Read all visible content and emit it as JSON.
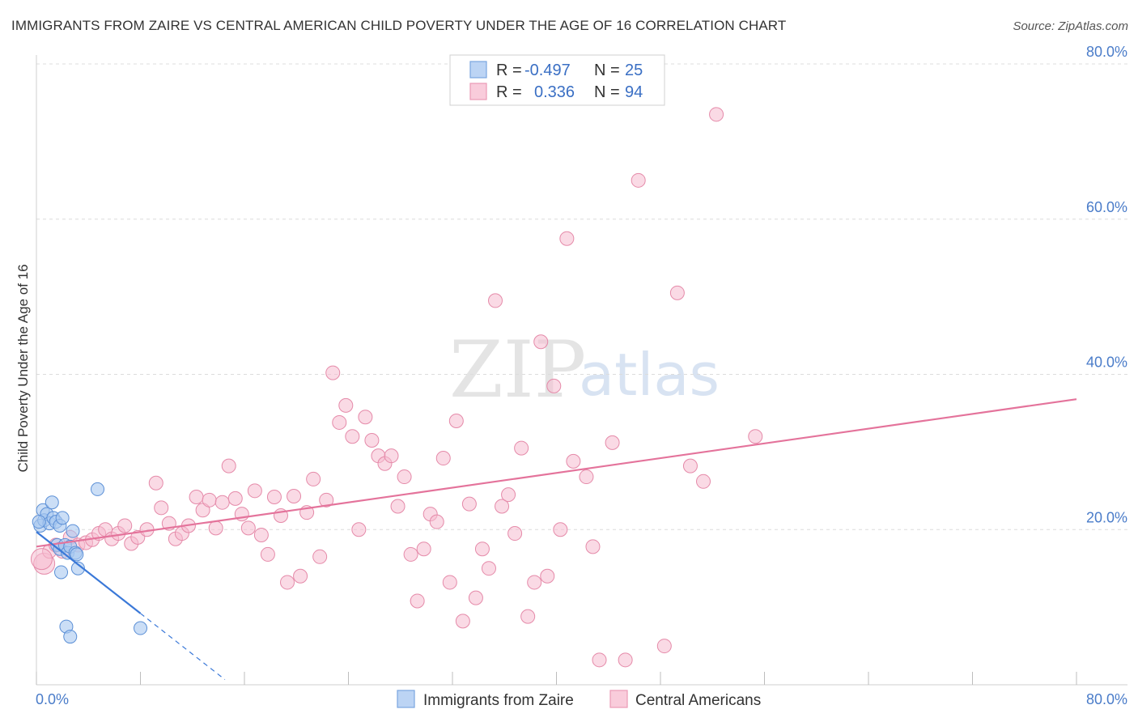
{
  "title": "IMMIGRANTS FROM ZAIRE VS CENTRAL AMERICAN CHILD POVERTY UNDER THE AGE OF 16 CORRELATION CHART",
  "source": "Source: ZipAtlas.com",
  "watermark": {
    "zip": "ZIP",
    "atlas": "atlas"
  },
  "legend": {
    "row1": {
      "r_label": "R =",
      "r_value": "-0.497",
      "n_label": "N =",
      "n_value": "25"
    },
    "row2": {
      "r_label": "R =",
      "r_value": "0.336",
      "n_label": "N =",
      "n_value": "94"
    }
  },
  "bottom_legend": {
    "series1": "Immigrants from Zaire",
    "series2": "Central Americans"
  },
  "colors": {
    "zaire_fill": "#a8c8f0",
    "zaire_stroke": "#5b8fd6",
    "zaire_line": "#3a78d8",
    "central_fill": "#f6bcd0",
    "central_stroke": "#e58aa9",
    "central_line": "#e4739b",
    "tick_text": "#4a7cc9"
  },
  "chart_data": {
    "type": "scatter",
    "ylabel": "Child Poverty Under the Age of 16",
    "xlim": [
      0,
      80
    ],
    "ylim": [
      0,
      80
    ],
    "x_tick_labels": [
      "0.0%",
      "80.0%"
    ],
    "y_ticks": [
      20,
      40,
      60,
      80
    ],
    "y_tick_labels": [
      "20.0%",
      "40.0%",
      "60.0%",
      "80.0%"
    ],
    "grid": true,
    "series": [
      {
        "name": "Immigrants from Zaire",
        "points": [
          [
            0.3,
            20.5
          ],
          [
            0.5,
            22.5
          ],
          [
            0.6,
            21.2
          ],
          [
            0.8,
            22.0
          ],
          [
            1.0,
            20.8
          ],
          [
            1.2,
            23.5
          ],
          [
            1.3,
            21.5
          ],
          [
            1.5,
            21.0
          ],
          [
            1.6,
            18.0
          ],
          [
            1.8,
            20.5
          ],
          [
            2.0,
            21.5
          ],
          [
            1.8,
            17.5
          ],
          [
            2.2,
            18.0
          ],
          [
            2.4,
            17.0
          ],
          [
            2.6,
            17.8
          ],
          [
            2.8,
            19.8
          ],
          [
            3.0,
            17.0
          ],
          [
            3.1,
            16.8
          ],
          [
            3.2,
            15.0
          ],
          [
            1.9,
            14.5
          ],
          [
            2.3,
            7.5
          ],
          [
            2.6,
            6.2
          ],
          [
            4.7,
            25.2
          ],
          [
            8.0,
            7.3
          ],
          [
            0.2,
            21.0
          ]
        ],
        "trend": {
          "x1": 0,
          "y1": 19.7,
          "x2": 8.0,
          "y2": 9.2,
          "dash_to_x": 14.5
        }
      },
      {
        "name": "Central Americans",
        "points": [
          [
            0.6,
            15.6
          ],
          [
            1.0,
            17.2
          ],
          [
            1.5,
            18.0
          ],
          [
            2.0,
            17.2
          ],
          [
            2.6,
            19.0
          ],
          [
            3.2,
            18.0
          ],
          [
            3.8,
            18.3
          ],
          [
            4.3,
            18.7
          ],
          [
            4.8,
            19.5
          ],
          [
            5.3,
            20.0
          ],
          [
            5.8,
            18.8
          ],
          [
            6.3,
            19.5
          ],
          [
            6.8,
            20.5
          ],
          [
            7.3,
            18.2
          ],
          [
            7.8,
            19.0
          ],
          [
            8.5,
            20.0
          ],
          [
            9.2,
            26.0
          ],
          [
            9.6,
            22.8
          ],
          [
            10.2,
            20.8
          ],
          [
            10.7,
            18.8
          ],
          [
            11.2,
            19.5
          ],
          [
            11.7,
            20.5
          ],
          [
            12.3,
            24.2
          ],
          [
            12.8,
            22.5
          ],
          [
            13.3,
            23.8
          ],
          [
            13.8,
            20.2
          ],
          [
            14.3,
            23.5
          ],
          [
            14.8,
            28.2
          ],
          [
            15.3,
            24.0
          ],
          [
            15.8,
            22.0
          ],
          [
            16.3,
            20.2
          ],
          [
            16.8,
            25.0
          ],
          [
            17.3,
            19.3
          ],
          [
            17.8,
            16.8
          ],
          [
            18.3,
            24.2
          ],
          [
            18.8,
            21.8
          ],
          [
            19.3,
            13.2
          ],
          [
            19.8,
            24.3
          ],
          [
            20.3,
            14.0
          ],
          [
            20.8,
            22.2
          ],
          [
            21.3,
            26.5
          ],
          [
            21.8,
            16.5
          ],
          [
            22.3,
            23.8
          ],
          [
            22.8,
            40.2
          ],
          [
            23.3,
            33.8
          ],
          [
            23.8,
            36.0
          ],
          [
            24.3,
            32.0
          ],
          [
            24.8,
            20.0
          ],
          [
            25.3,
            34.5
          ],
          [
            25.8,
            31.5
          ],
          [
            26.3,
            29.5
          ],
          [
            26.8,
            28.5
          ],
          [
            27.3,
            29.5
          ],
          [
            27.8,
            23.0
          ],
          [
            28.3,
            26.8
          ],
          [
            28.8,
            16.8
          ],
          [
            29.3,
            10.8
          ],
          [
            29.8,
            17.5
          ],
          [
            30.3,
            22.0
          ],
          [
            30.8,
            21.0
          ],
          [
            31.3,
            29.2
          ],
          [
            31.8,
            13.2
          ],
          [
            32.3,
            34.0
          ],
          [
            32.8,
            8.2
          ],
          [
            33.3,
            23.3
          ],
          [
            33.8,
            11.2
          ],
          [
            34.3,
            17.5
          ],
          [
            34.8,
            15.0
          ],
          [
            35.3,
            49.5
          ],
          [
            35.8,
            23.0
          ],
          [
            36.3,
            24.5
          ],
          [
            36.8,
            19.5
          ],
          [
            37.3,
            30.5
          ],
          [
            37.8,
            8.8
          ],
          [
            38.3,
            13.2
          ],
          [
            38.8,
            44.2
          ],
          [
            39.3,
            14.0
          ],
          [
            39.8,
            38.5
          ],
          [
            40.3,
            20.0
          ],
          [
            40.8,
            57.5
          ],
          [
            41.3,
            28.8
          ],
          [
            42.3,
            26.8
          ],
          [
            42.8,
            17.8
          ],
          [
            43.3,
            3.2
          ],
          [
            44.3,
            31.2
          ],
          [
            45.3,
            3.2
          ],
          [
            46.3,
            65.0
          ],
          [
            48.3,
            5.0
          ],
          [
            49.3,
            50.5
          ],
          [
            50.3,
            28.2
          ],
          [
            51.3,
            26.2
          ],
          [
            52.3,
            73.5
          ],
          [
            55.3,
            32.0
          ],
          [
            0.4,
            16.2
          ]
        ],
        "trend": {
          "x1": 0,
          "y1": 17.8,
          "x2": 80,
          "y2": 36.8
        }
      }
    ]
  }
}
